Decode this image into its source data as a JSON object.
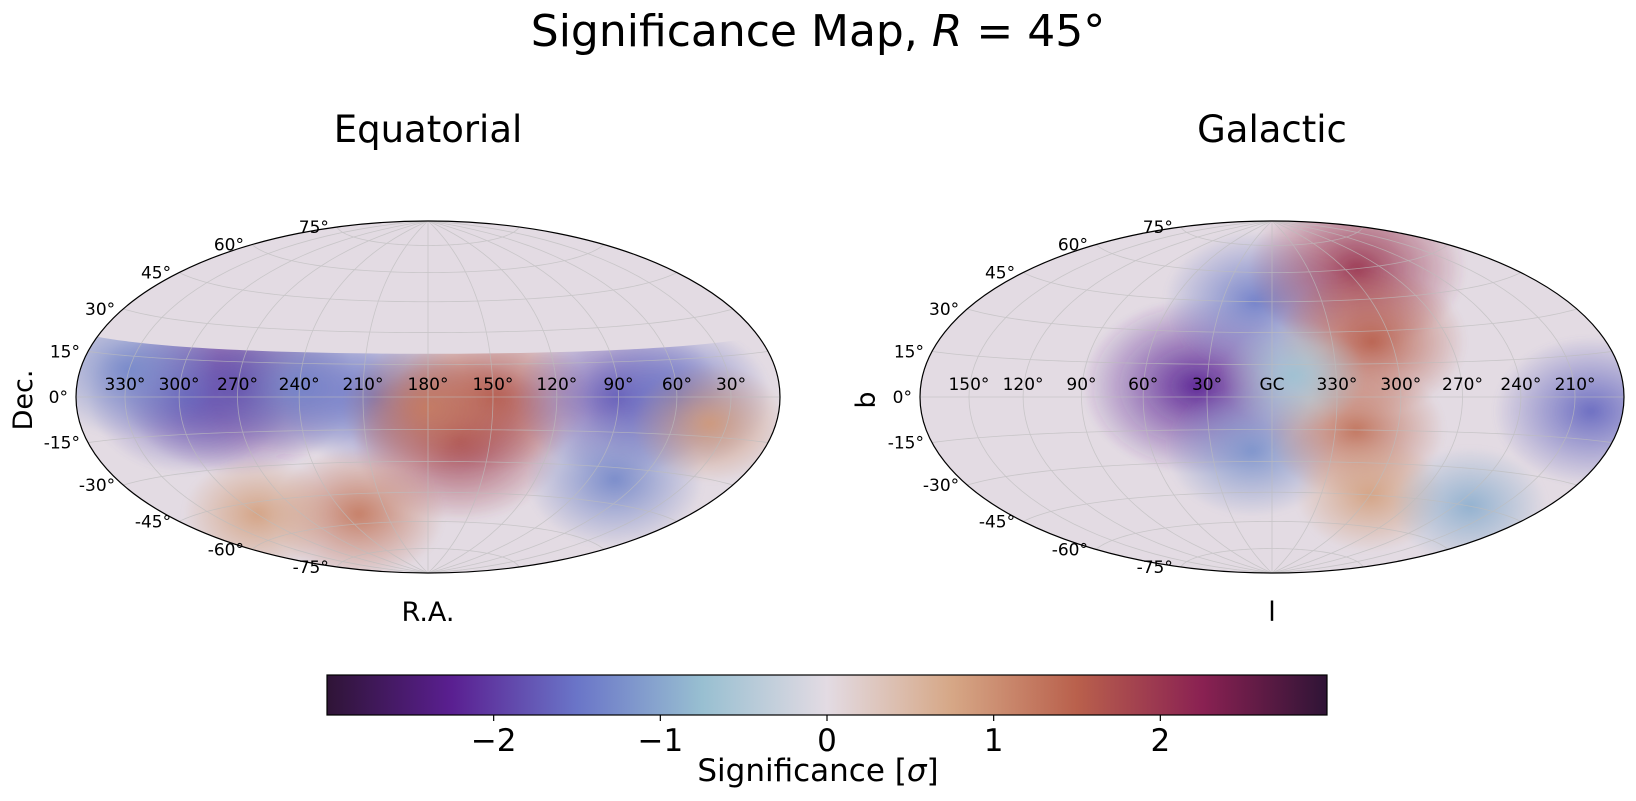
{
  "figure": {
    "title_prefix": "Significance Map, ",
    "title_var": "R",
    "title_suffix": " = 45°"
  },
  "colorbar": {
    "label_prefix": "Significance [",
    "label_var": "σ",
    "label_suffix": "]",
    "range": [
      -3,
      3
    ],
    "ticks": [
      -2,
      -1,
      0,
      1,
      2
    ],
    "tick_labels": [
      "−2",
      "−1",
      "0",
      "1",
      "2"
    ],
    "colormap": "twilight_shifted",
    "colors": [
      "#2f1436",
      "#5a1f91",
      "#6a75c8",
      "#98bfd1",
      "#e3dbe3",
      "#d6a786",
      "#b9604c",
      "#8a2152",
      "#2f1436"
    ]
  },
  "chart_data": [
    {
      "type": "heatmap",
      "projection": "hammer",
      "title": "Equatorial",
      "xlabel": "R.A.",
      "ylabel": "Dec.",
      "lon_tick_labels": [
        "330°",
        "300°",
        "270°",
        "240°",
        "210°",
        "180°",
        "150°",
        "120°",
        "90°",
        "60°",
        "30°"
      ],
      "lat_tick_labels": [
        "-75°",
        "-60°",
        "-45°",
        "-30°",
        "-15°",
        "0°",
        "15°",
        "30°",
        "45°",
        "60°",
        "75°"
      ],
      "lon_ticks_deg": [
        330,
        300,
        270,
        240,
        210,
        180,
        150,
        120,
        90,
        60,
        30
      ],
      "lat_ticks_deg": [
        -75,
        -60,
        -45,
        -30,
        -15,
        0,
        15,
        30,
        45,
        60,
        75
      ],
      "grid": true,
      "coverage_dec_max": 20,
      "features": [
        {
          "lon": 270,
          "lat": 5,
          "value": -2.3
        },
        {
          "lon": 295,
          "lat": 0,
          "value": -1.7
        },
        {
          "lon": 330,
          "lat": 10,
          "value": -1.3
        },
        {
          "lon": 240,
          "lat": 5,
          "value": -1.3
        },
        {
          "lon": 205,
          "lat": 0,
          "value": -1.5
        },
        {
          "lon": 165,
          "lat": -20,
          "value": 1.9
        },
        {
          "lon": 150,
          "lat": 0,
          "value": 1.6
        },
        {
          "lon": 180,
          "lat": -5,
          "value": 1.2
        },
        {
          "lon": 90,
          "lat": 0,
          "value": -1.8
        },
        {
          "lon": 60,
          "lat": 0,
          "value": -1.5
        },
        {
          "lon": 75,
          "lat": -35,
          "value": -1.3
        },
        {
          "lon": 40,
          "lat": -10,
          "value": 0.9
        },
        {
          "lon": 230,
          "lat": -55,
          "value": 1.2
        },
        {
          "lon": 300,
          "lat": -50,
          "value": 0.8
        }
      ]
    },
    {
      "type": "heatmap",
      "projection": "hammer",
      "title": "Galactic",
      "xlabel": "l",
      "ylabel": "b",
      "lon_tick_labels": [
        "150°",
        "120°",
        "90°",
        "60°",
        "30°",
        "GC",
        "330°",
        "300°",
        "270°",
        "240°",
        "210°"
      ],
      "lat_tick_labels": [
        "-75°",
        "-60°",
        "-45°",
        "-30°",
        "-15°",
        "0°",
        "15°",
        "30°",
        "45°",
        "60°",
        "75°"
      ],
      "lon_ticks_deg": [
        150,
        120,
        90,
        60,
        30,
        0,
        330,
        300,
        270,
        240,
        210
      ],
      "lat_ticks_deg": [
        -75,
        -60,
        -45,
        -30,
        -15,
        0,
        15,
        30,
        45,
        60,
        75
      ],
      "grid": true,
      "features": [
        {
          "lon": 35,
          "lat": 5,
          "value": -2.2
        },
        {
          "lon": 10,
          "lat": 45,
          "value": -1.4
        },
        {
          "lon": 10,
          "lat": -25,
          "value": -1.2
        },
        {
          "lon": 290,
          "lat": 60,
          "value": 2.0
        },
        {
          "lon": 310,
          "lat": 25,
          "value": 1.5
        },
        {
          "lon": 320,
          "lat": -15,
          "value": 1.3
        },
        {
          "lon": 300,
          "lat": -45,
          "value": 0.8
        },
        {
          "lon": 200,
          "lat": -5,
          "value": -1.6
        },
        {
          "lon": 230,
          "lat": -45,
          "value": -0.9
        },
        {
          "lon": 350,
          "lat": 10,
          "value": -0.7
        }
      ]
    }
  ]
}
